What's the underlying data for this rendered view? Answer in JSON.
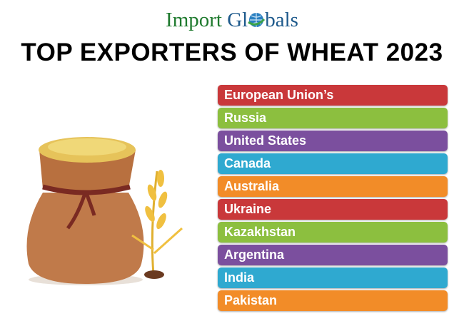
{
  "logo": {
    "part1": "Import ",
    "part2": "Gl",
    "part3": "bals",
    "globe_icon": "globe-icon"
  },
  "title": "TOP EXPORTERS OF WHEAT 2023",
  "exporters": [
    {
      "name": "European Union’s",
      "color": "#c9383a"
    },
    {
      "name": "Russia",
      "color": "#8cbf3f"
    },
    {
      "name": "United States",
      "color": "#7b4f9e"
    },
    {
      "name": "Canada",
      "color": "#2fa9d0"
    },
    {
      "name": "Australia",
      "color": "#f28c28"
    },
    {
      "name": "Ukraine",
      "color": "#c9383a"
    },
    {
      "name": "Kazakhstan",
      "color": "#8cbf3f"
    },
    {
      "name": "Argentina",
      "color": "#7b4f9e"
    },
    {
      "name": "India",
      "color": "#2fa9d0"
    },
    {
      "name": "Pakistan",
      "color": "#f28c28"
    }
  ]
}
